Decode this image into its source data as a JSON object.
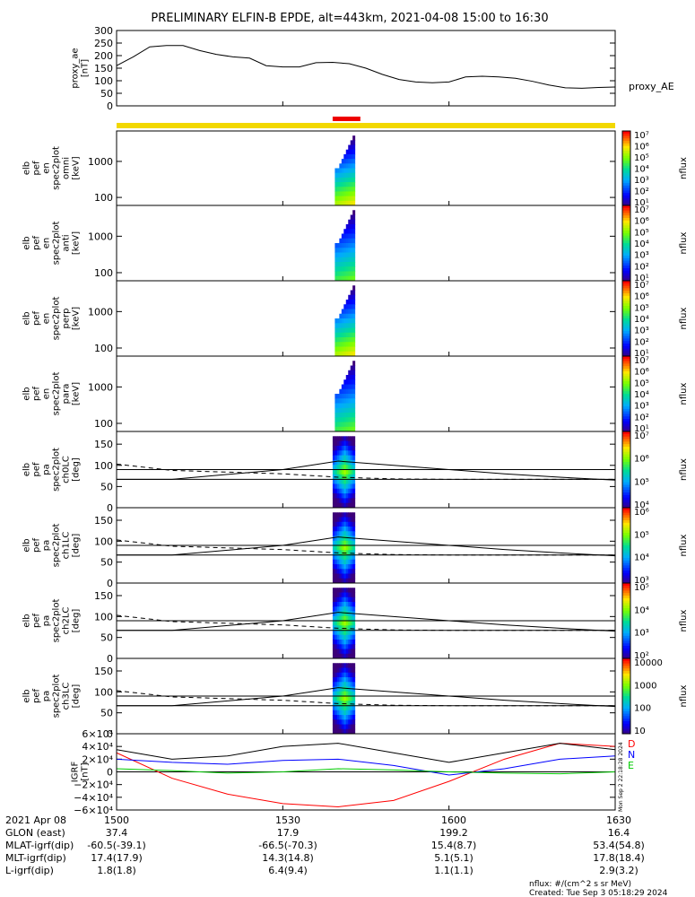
{
  "title": "PRELIMINARY ELFIN-B EPDE, alt=443km, 2021-04-08 15:00 to 16:30",
  "footer": {
    "units": "nflux: #/(cm^2 s sr MeV)",
    "created": "Created: Tue Sep  3 05:18:29 2024",
    "side_stamp": "Mon Sep  2 22:18:28 2024"
  },
  "colors": {
    "orbit_bar": "#f2d800",
    "science_bar": "#ee0000",
    "bx": "#ff0000",
    "by": "#0000ff",
    "bz": "#00cc00",
    "line": "#000000"
  },
  "ephem": {
    "rows": [
      "2021 Apr 08",
      "GLON (east)",
      "MLAT-igrf(dip)",
      "MLT-igrf(dip)",
      "L-igrf(dip)"
    ],
    "columns": [
      {
        "x": "1500",
        "GLON": "37.4",
        "MLAT": "-60.5(-39.1)",
        "MLT": "17.4(17.9)",
        "L": "1.8(1.8)"
      },
      {
        "x": "1530",
        "GLON": "17.9",
        "MLAT": "-66.5(-70.3)",
        "MLT": "14.3(14.8)",
        "L": "6.4(9.4)"
      },
      {
        "x": "1600",
        "GLON": "199.2",
        "MLAT": "15.4(8.7)",
        "MLT": "5.1(5.1)",
        "L": "1.1(1.1)"
      },
      {
        "x": "1630",
        "GLON": "16.4",
        "MLAT": "53.4(54.8)",
        "MLT": "17.8(18.4)",
        "L": "2.9(3.2)"
      }
    ]
  },
  "chart_data": [
    {
      "type": "line",
      "panel": "proxy_ae",
      "ylabel": [
        "proxy_ae",
        "[nT]"
      ],
      "legend": "proxy_AE",
      "ylim": [
        0,
        300
      ],
      "yticks": [
        "300",
        "250",
        "200",
        "150",
        "100",
        "50",
        "0"
      ],
      "x": [
        "15:00",
        "15:03",
        "15:06",
        "15:09",
        "15:12",
        "15:15",
        "15:18",
        "15:21",
        "15:24",
        "15:27",
        "15:30",
        "15:33",
        "15:36",
        "15:39",
        "15:42",
        "15:45",
        "15:48",
        "15:51",
        "15:54",
        "15:57",
        "16:00",
        "16:03",
        "16:06",
        "16:09",
        "16:12",
        "16:15",
        "16:18",
        "16:21",
        "16:24",
        "16:27",
        "16:30"
      ],
      "values": [
        160,
        195,
        235,
        240,
        240,
        220,
        205,
        195,
        190,
        160,
        155,
        155,
        172,
        173,
        168,
        150,
        125,
        105,
        95,
        92,
        95,
        115,
        118,
        115,
        110,
        98,
        83,
        72,
        70,
        73,
        75
      ]
    },
    {
      "type": "heatmap",
      "panel": "elb_pef_en_spec2plot_omni",
      "ylabel": [
        "elb",
        "pef",
        "en",
        "spec2plot",
        "omni",
        "[keV]"
      ],
      "yscale": "log",
      "ylim": [
        60,
        7000
      ],
      "yticks": [
        "1000",
        "100"
      ],
      "zlabel": "nflux",
      "zscale": "log",
      "zticks": [
        "10⁷",
        "10⁶",
        "10⁵",
        "10⁴",
        "10³",
        "10²",
        "10¹"
      ],
      "x_range": [
        "15:39",
        "15:43"
      ]
    },
    {
      "type": "heatmap",
      "panel": "elb_pef_en_spec2plot_anti",
      "ylabel": [
        "elb",
        "pef",
        "en",
        "spec2plot",
        "anti",
        "[keV]"
      ],
      "yscale": "log",
      "ylim": [
        60,
        7000
      ],
      "yticks": [
        "1000",
        "100"
      ],
      "zlabel": "nflux",
      "zscale": "log",
      "zticks": [
        "10⁷",
        "10⁶",
        "10⁵",
        "10⁴",
        "10³",
        "10²",
        "10¹"
      ],
      "x_range": [
        "15:39",
        "15:43"
      ]
    },
    {
      "type": "heatmap",
      "panel": "elb_pef_en_spec2plot_perp",
      "ylabel": [
        "elb",
        "pef",
        "en",
        "spec2plot",
        "perp",
        "[keV]"
      ],
      "yscale": "log",
      "ylim": [
        60,
        7000
      ],
      "yticks": [
        "1000",
        "100"
      ],
      "zlabel": "nflux",
      "zscale": "log",
      "zticks": [
        "10⁷",
        "10⁶",
        "10⁵",
        "10⁴",
        "10³",
        "10²",
        "10¹"
      ],
      "x_range": [
        "15:39",
        "15:43"
      ]
    },
    {
      "type": "heatmap",
      "panel": "elb_pef_en_spec2plot_para",
      "ylabel": [
        "elb",
        "pef",
        "en",
        "spec2plot",
        "para",
        "[keV]"
      ],
      "yscale": "log",
      "ylim": [
        60,
        7000
      ],
      "yticks": [
        "1000",
        "100"
      ],
      "zlabel": "nflux",
      "zscale": "log",
      "zticks": [
        "10⁷",
        "10⁶",
        "10⁵",
        "10⁴",
        "10³",
        "10²",
        "10¹"
      ],
      "x_range": [
        "15:39",
        "15:43"
      ]
    },
    {
      "type": "heatmap",
      "panel": "elb_pef_pa_spec2plot_ch0LC",
      "ylabel": [
        "elb",
        "pef",
        "pa",
        "spec2plot",
        "ch0LC",
        "[deg]"
      ],
      "ylim": [
        0,
        180
      ],
      "yticks": [
        "150",
        "100",
        "50",
        "0"
      ],
      "zlabel": "nflux",
      "zscale": "log",
      "zticks": [
        "10⁷",
        "10⁶",
        "10⁵",
        "10⁴"
      ],
      "x_range": [
        "15:39",
        "15:43"
      ],
      "lc_solid_x": [
        "15:00",
        "15:10",
        "15:30",
        "15:40",
        "15:50",
        "16:00",
        "16:10",
        "16:20",
        "16:30"
      ],
      "lc_solid": [
        67,
        67,
        90,
        110,
        100,
        90,
        80,
        72,
        65
      ],
      "lc_dashed": [
        103,
        88,
        80,
        72,
        68,
        67,
        67,
        67,
        67
      ],
      "hlines": [
        90,
        67
      ]
    },
    {
      "type": "heatmap",
      "panel": "elb_pef_pa_spec2plot_ch1LC",
      "ylabel": [
        "elb",
        "pef",
        "pa",
        "spec2plot",
        "ch1LC",
        "[deg]"
      ],
      "ylim": [
        0,
        180
      ],
      "yticks": [
        "150",
        "100",
        "50",
        "0"
      ],
      "zlabel": "nflux",
      "zscale": "log",
      "zticks": [
        "10⁶",
        "10⁵",
        "10⁴",
        "10³"
      ],
      "x_range": [
        "15:39",
        "15:43"
      ],
      "lc_solid_x": [
        "15:00",
        "15:10",
        "15:30",
        "15:40",
        "15:50",
        "16:00",
        "16:10",
        "16:20",
        "16:30"
      ],
      "lc_solid": [
        67,
        67,
        90,
        110,
        100,
        90,
        80,
        72,
        65
      ],
      "lc_dashed": [
        103,
        88,
        80,
        72,
        68,
        67,
        67,
        67,
        67
      ],
      "hlines": [
        90,
        67
      ]
    },
    {
      "type": "heatmap",
      "panel": "elb_pef_pa_spec2plot_ch2LC",
      "ylabel": [
        "elb",
        "pef",
        "pa",
        "spec2plot",
        "ch2LC",
        "[deg]"
      ],
      "ylim": [
        0,
        180
      ],
      "yticks": [
        "150",
        "100",
        "50",
        "0"
      ],
      "zlabel": "nflux",
      "zscale": "log",
      "zticks": [
        "10⁵",
        "10⁴",
        "10³",
        "10²"
      ],
      "x_range": [
        "15:39",
        "15:43"
      ],
      "lc_solid_x": [
        "15:00",
        "15:10",
        "15:30",
        "15:40",
        "15:50",
        "16:00",
        "16:10",
        "16:20",
        "16:30"
      ],
      "lc_solid": [
        67,
        67,
        90,
        110,
        100,
        90,
        80,
        72,
        65
      ],
      "lc_dashed": [
        103,
        88,
        80,
        72,
        68,
        67,
        67,
        67,
        67
      ],
      "hlines": [
        90,
        67
      ]
    },
    {
      "type": "heatmap",
      "panel": "elb_pef_pa_spec2plot_ch3LC",
      "ylabel": [
        "elb",
        "pef",
        "pa",
        "spec2plot",
        "ch3LC",
        "[deg]"
      ],
      "ylim": [
        0,
        180
      ],
      "yticks": [
        "150",
        "100",
        "50",
        "0"
      ],
      "zlabel": "nflux",
      "zscale": "log",
      "zticks": [
        "10000",
        "1000",
        "100",
        "10"
      ],
      "x_range": [
        "15:39",
        "15:43"
      ],
      "lc_solid_x": [
        "15:00",
        "15:10",
        "15:30",
        "15:40",
        "15:50",
        "16:00",
        "16:10",
        "16:20",
        "16:30"
      ],
      "lc_solid": [
        67,
        67,
        90,
        110,
        100,
        90,
        80,
        72,
        65
      ],
      "lc_dashed": [
        103,
        88,
        80,
        72,
        68,
        67,
        67,
        67,
        67
      ],
      "hlines": [
        90,
        67
      ]
    },
    {
      "type": "line",
      "panel": "IGRF",
      "ylabel": [
        "IGRF",
        "[nT]"
      ],
      "ylim": [
        -60000,
        60000
      ],
      "yticks": [
        "6×10⁴",
        "4×10⁴",
        "2×10⁴",
        "0",
        "−2×10⁴",
        "−4×10⁴",
        "−6×10⁴"
      ],
      "x": [
        "15:00",
        "15:10",
        "15:20",
        "15:30",
        "15:40",
        "15:50",
        "16:00",
        "16:10",
        "16:20",
        "16:30"
      ],
      "series": [
        {
          "name": "D",
          "values": [
            30000,
            -10000,
            -35000,
            -50000,
            -55000,
            -45000,
            -15000,
            20000,
            45000,
            40000
          ]
        },
        {
          "name": "N",
          "values": [
            20000,
            15000,
            12000,
            18000,
            20000,
            10000,
            -5000,
            5000,
            20000,
            25000
          ]
        },
        {
          "name": "E",
          "values": [
            5000,
            2000,
            -2000,
            0,
            5000,
            3000,
            0,
            -2000,
            -3000,
            0
          ]
        },
        {
          "values": [
            35000,
            20000,
            25000,
            40000,
            45000,
            30000,
            15000,
            30000,
            45000,
            35000
          ]
        }
      ]
    }
  ]
}
